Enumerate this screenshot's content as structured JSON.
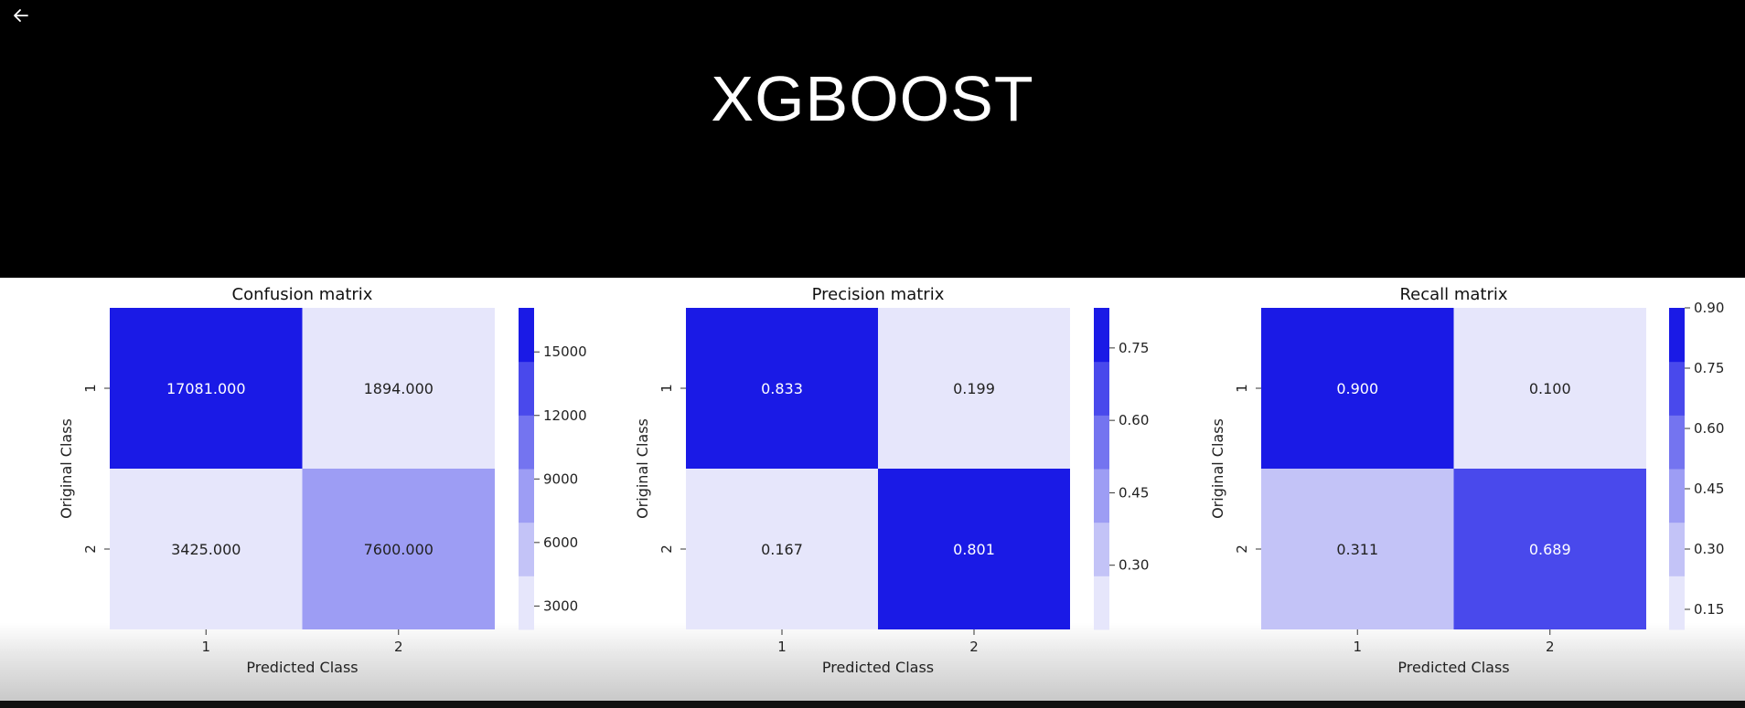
{
  "slide": {
    "title": "XGBOOST"
  },
  "chart_data": [
    {
      "type": "heatmap",
      "title": "Confusion matrix",
      "xlabel": "Predicted Class",
      "ylabel": "Original Class",
      "x_categories": [
        "1",
        "2"
      ],
      "y_categories": [
        "1",
        "2"
      ],
      "values": [
        [
          17081.0,
          1894.0
        ],
        [
          3425.0,
          7600.0
        ]
      ],
      "value_labels": [
        [
          "17081.000",
          "1894.000"
        ],
        [
          "3425.000",
          "7600.000"
        ]
      ],
      "colorbar": {
        "range": [
          1894,
          17081
        ],
        "ticks": [
          3000,
          6000,
          9000,
          12000,
          15000
        ],
        "tick_labels": [
          "3000",
          "6000",
          "9000",
          "12000",
          "15000"
        ]
      }
    },
    {
      "type": "heatmap",
      "title": "Precision matrix",
      "xlabel": "Predicted Class",
      "ylabel": "Original Class",
      "x_categories": [
        "1",
        "2"
      ],
      "y_categories": [
        "1",
        "2"
      ],
      "values": [
        [
          0.833,
          0.199
        ],
        [
          0.167,
          0.801
        ]
      ],
      "value_labels": [
        [
          "0.833",
          "0.199"
        ],
        [
          "0.167",
          "0.801"
        ]
      ],
      "colorbar": {
        "range": [
          0.167,
          0.833
        ],
        "ticks": [
          0.3,
          0.45,
          0.6,
          0.75
        ],
        "tick_labels": [
          "0.30",
          "0.45",
          "0.60",
          "0.75"
        ]
      }
    },
    {
      "type": "heatmap",
      "title": "Recall matrix",
      "xlabel": "Predicted Class",
      "ylabel": "Original Class",
      "x_categories": [
        "1",
        "2"
      ],
      "y_categories": [
        "1",
        "2"
      ],
      "values": [
        [
          0.9,
          0.1
        ],
        [
          0.311,
          0.689
        ]
      ],
      "value_labels": [
        [
          "0.900",
          "0.100"
        ],
        [
          "0.311",
          "0.689"
        ]
      ],
      "colorbar": {
        "range": [
          0.1,
          0.9
        ],
        "ticks": [
          0.15,
          0.3,
          0.45,
          0.6,
          0.75,
          0.9
        ],
        "tick_labels": [
          "0.15",
          "0.30",
          "0.45",
          "0.60",
          "0.75",
          "0.90"
        ]
      }
    }
  ],
  "colors": {
    "background": "#000000",
    "panel": "#ffffff",
    "scale": [
      "#e6e6fb",
      "#c3c3f7",
      "#9d9df4",
      "#7474f0",
      "#4949ec",
      "#1a1ae6"
    ],
    "light_text": "#ffffff",
    "dark_text": "#222222"
  },
  "icons": {
    "back": "arrow-left-icon"
  }
}
